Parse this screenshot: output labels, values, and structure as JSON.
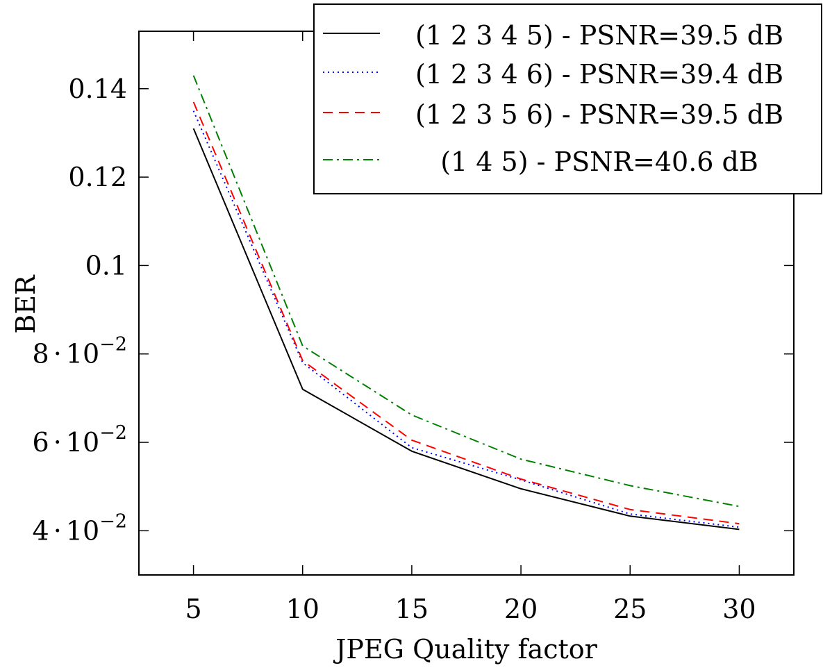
{
  "chart_data": {
    "type": "line",
    "title": "",
    "xlabel": "JPEG Quality factor",
    "ylabel": "BER",
    "x": [
      5,
      10,
      15,
      20,
      25,
      30
    ],
    "xlim": [
      2.5,
      32.5
    ],
    "ylim": [
      0.03,
      0.153
    ],
    "xticks": [
      {
        "value": 5,
        "label": "5"
      },
      {
        "value": 10,
        "label": "10"
      },
      {
        "value": 15,
        "label": "15"
      },
      {
        "value": 20,
        "label": "20"
      },
      {
        "value": 25,
        "label": "25"
      },
      {
        "value": 30,
        "label": "30"
      }
    ],
    "yticks": [
      {
        "value": 0.04,
        "mantissa": "4",
        "dot": "·",
        "base": "10",
        "exp": "−2"
      },
      {
        "value": 0.06,
        "mantissa": "6",
        "dot": "·",
        "base": "10",
        "exp": "−2"
      },
      {
        "value": 0.08,
        "mantissa": "8",
        "dot": "·",
        "base": "10",
        "exp": "−2"
      },
      {
        "value": 0.1,
        "label": "0.1"
      },
      {
        "value": 0.12,
        "label": "0.12"
      },
      {
        "value": 0.14,
        "label": "0.14"
      }
    ],
    "grid": false,
    "legend_position": "top-right",
    "series": [
      {
        "name": "(1 2 3 4 5) - PSNR=39.5 dB",
        "color": "#000000",
        "dash": "solid",
        "values": [
          0.131,
          0.072,
          0.058,
          0.0495,
          0.0433,
          0.0403
        ]
      },
      {
        "name": "(1 2 3 4 6) - PSNR=39.4 dB",
        "color": "#0000ff",
        "dash": "dotted",
        "values": [
          0.135,
          0.078,
          0.0588,
          0.0515,
          0.0438,
          0.0408
        ]
      },
      {
        "name": "(1 2 3 5 6) - PSNR=39.5 dB",
        "color": "#ff0000",
        "dash": "dashed",
        "values": [
          0.137,
          0.0785,
          0.0605,
          0.0517,
          0.0448,
          0.0416
        ]
      },
      {
        "name": "(1 4 5) - PSNR=40.6 dB",
        "color": "#008000",
        "dash": "dashdot",
        "values": [
          0.143,
          0.0818,
          0.0662,
          0.0562,
          0.0502,
          0.0455
        ]
      }
    ]
  }
}
